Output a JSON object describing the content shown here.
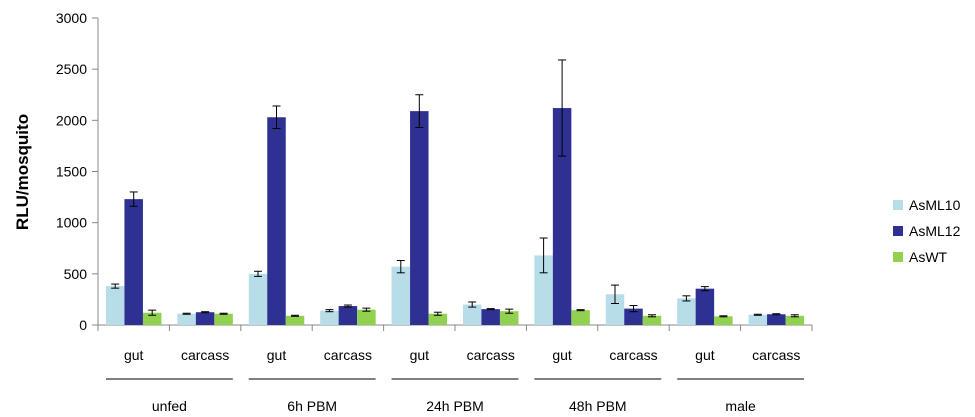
{
  "chart_data": {
    "type": "bar",
    "title": "",
    "xlabel": "",
    "ylabel": "RLU/mosquito",
    "ylim": [
      0,
      3000
    ],
    "yticks": [
      0,
      500,
      1000,
      1500,
      2000,
      2500,
      3000
    ],
    "grid": false,
    "legend_position": "right",
    "groups": [
      "unfed",
      "6h PBM",
      "24h PBM",
      "48h PBM",
      "male"
    ],
    "categories": [
      "gut",
      "carcass",
      "gut",
      "carcass",
      "gut",
      "carcass",
      "gut",
      "carcass",
      "gut",
      "carcass"
    ],
    "series": [
      {
        "name": "AsML10",
        "color": "#b7dee8",
        "values": [
          380,
          110,
          500,
          140,
          570,
          200,
          680,
          300,
          260,
          100
        ],
        "errors": [
          20,
          5,
          25,
          10,
          60,
          25,
          170,
          90,
          25,
          5
        ]
      },
      {
        "name": "AsML12",
        "color": "#2e3192",
        "values": [
          1230,
          125,
          2030,
          185,
          2090,
          155,
          2120,
          160,
          355,
          105
        ],
        "errors": [
          70,
          5,
          110,
          10,
          160,
          5,
          470,
          30,
          20,
          5
        ]
      },
      {
        "name": "AsWT",
        "color": "#92d050",
        "values": [
          120,
          110,
          90,
          150,
          110,
          135,
          145,
          90,
          85,
          90
        ],
        "errors": [
          25,
          5,
          5,
          15,
          15,
          20,
          5,
          10,
          5,
          10
        ]
      }
    ]
  }
}
